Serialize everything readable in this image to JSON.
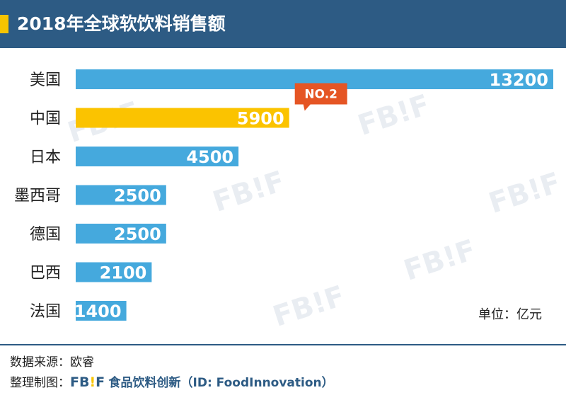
{
  "header": {
    "title": "2018年全球软饮料销售额"
  },
  "chart_data": {
    "type": "bar",
    "orientation": "horizontal",
    "title": "2018年全球软饮料销售额",
    "categories": [
      "美国",
      "中国",
      "日本",
      "墨西哥",
      "德国",
      "巴西",
      "法国"
    ],
    "values": [
      13200,
      5900,
      4500,
      2500,
      2500,
      2100,
      1400
    ],
    "value_labels": [
      "13200",
      "5900",
      "4500",
      "2500",
      "2500",
      "2100",
      "1400"
    ],
    "xlim": [
      0,
      13200
    ],
    "highlight_index": 1,
    "annotation": "NO.2",
    "unit": "单位：亿元",
    "colors": {
      "default": "#45a9dd",
      "highlight": "#fbc300",
      "badge": "#e55524"
    }
  },
  "footer": {
    "source": "数据来源：欧睿",
    "credit_prefix": "整理制图：",
    "logo_left": "FB",
    "logo_bang": "!",
    "logo_right": "F",
    "credit_name": "食品饮料创新",
    "credit_id": "（ID: FoodInnovation）"
  },
  "watermark": {
    "left": "FB",
    "bang": "!",
    "right": "F"
  }
}
